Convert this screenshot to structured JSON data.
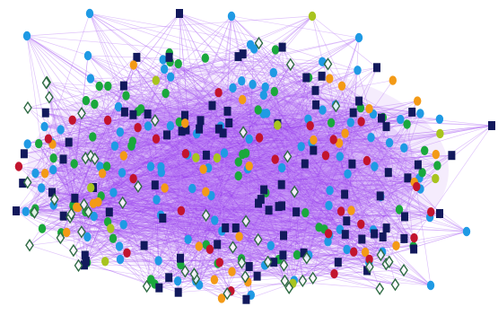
{
  "network": {
    "edge_color": "#9b45f0",
    "edge_highlight_color": "#c28cf7",
    "node_classes": [
      {
        "name": "light-blue",
        "shape": "circle",
        "color": "#1f9ae4"
      },
      {
        "name": "green",
        "shape": "circle",
        "color": "#1aa83c"
      },
      {
        "name": "orange",
        "shape": "circle",
        "color": "#f39a16"
      },
      {
        "name": "red",
        "shape": "circle",
        "color": "#c2142e"
      },
      {
        "name": "yellow-green",
        "shape": "circle",
        "color": "#a8c41f"
      },
      {
        "name": "navy",
        "shape": "square",
        "color": "#12195c"
      },
      {
        "name": "dark-green-outline",
        "shape": "diamond",
        "color": "#2f6b44"
      }
    ]
  }
}
